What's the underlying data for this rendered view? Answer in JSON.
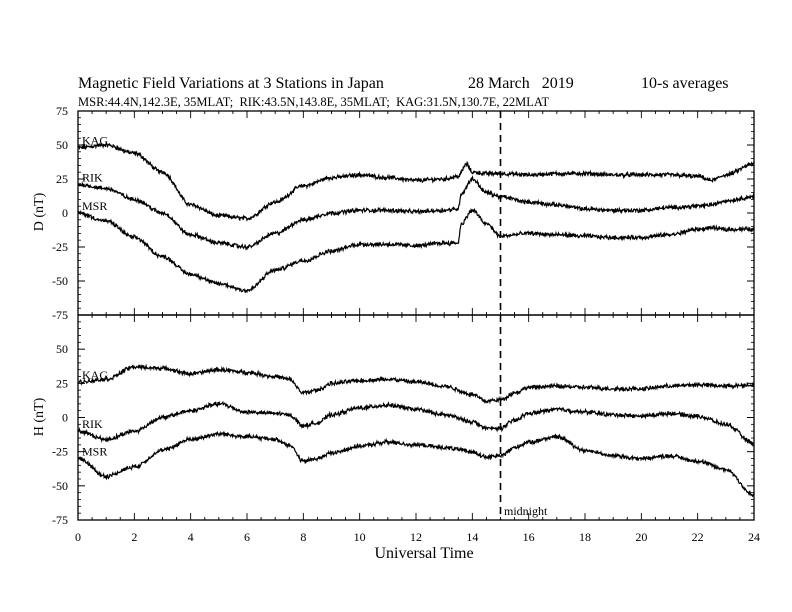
{
  "title": {
    "main": "Magnetic Field Variations at 3 Stations in Japan",
    "date": "28 March   2019",
    "avg": "10-s averages"
  },
  "subtitle": "MSR:44.4N,142.3E, 35MLAT;  RIK:43.5N,143.8E, 35MLAT;  KAG:31.5N,130.7E, 22MLAT",
  "chart_data": [
    {
      "type": "line",
      "panel": "D",
      "ylabel": "D (nT)",
      "xlabel": "Universal Time",
      "xlim": [
        0,
        24
      ],
      "ylim": [
        -75,
        75
      ],
      "x_ticks": [
        "0",
        "2",
        "4",
        "6",
        "8",
        "10",
        "12",
        "14",
        "16",
        "18",
        "20",
        "22",
        "24"
      ],
      "y_ticks": [
        "75",
        "50",
        "25",
        "0",
        "-25",
        "-50",
        "-75"
      ],
      "annotation": {
        "x": 15,
        "style": "dashed vertical line"
      },
      "series": [
        {
          "name": "KAG",
          "x": [
            0,
            1,
            2,
            3,
            4,
            5,
            6,
            7,
            8,
            9,
            10,
            11,
            12,
            13,
            13.5,
            13.8,
            14,
            14.5,
            15,
            16,
            17,
            18,
            19,
            20,
            21,
            22,
            22.5,
            23,
            24
          ],
          "y": [
            48,
            50,
            44,
            30,
            6,
            -2,
            -4,
            8,
            20,
            26,
            28,
            26,
            24,
            25,
            27,
            36,
            30,
            29,
            29,
            28,
            29,
            29,
            28,
            28,
            28,
            27,
            24,
            28,
            36
          ]
        },
        {
          "name": "RIK",
          "x": [
            0,
            1,
            2,
            3,
            4,
            5,
            6,
            7,
            8,
            9,
            10,
            11,
            12,
            13,
            13.5,
            13.6,
            14,
            14.5,
            15,
            16,
            17,
            18,
            19,
            20,
            21,
            22,
            22.5,
            23,
            24
          ],
          "y": [
            21,
            18,
            10,
            0,
            -16,
            -22,
            -25,
            -15,
            -5,
            0,
            2,
            2,
            1,
            2,
            3,
            14,
            25,
            15,
            12,
            8,
            6,
            3,
            2,
            2,
            4,
            5,
            6,
            9,
            12
          ]
        },
        {
          "name": "MSR",
          "x": [
            0,
            1,
            2,
            3,
            4,
            5,
            6,
            7,
            8,
            9,
            10,
            11,
            12,
            13,
            13.5,
            13.6,
            14,
            14.5,
            15,
            16,
            17,
            18,
            19,
            20,
            21,
            22,
            22.5,
            23,
            24
          ],
          "y": [
            0,
            -6,
            -18,
            -32,
            -45,
            -52,
            -57,
            -42,
            -35,
            -28,
            -23,
            -23,
            -24,
            -22,
            -22,
            -8,
            2,
            -8,
            -17,
            -15,
            -16,
            -17,
            -18,
            -18,
            -16,
            -12,
            -11,
            -12,
            -12
          ]
        }
      ]
    },
    {
      "type": "line",
      "panel": "H",
      "ylabel": "H (nT)",
      "xlabel": "Universal Time",
      "xlim": [
        0,
        24
      ],
      "ylim": [
        -75,
        75
      ],
      "x_ticks": [
        "0",
        "2",
        "4",
        "6",
        "8",
        "10",
        "12",
        "14",
        "16",
        "18",
        "20",
        "22",
        "24"
      ],
      "y_ticks": [
        "75",
        "50",
        "25",
        "0",
        "-25",
        "-50",
        "-75"
      ],
      "annotation": {
        "x": 15,
        "label": "midnight",
        "style": "dashed vertical line"
      },
      "series": [
        {
          "name": "KAG",
          "x": [
            0,
            1,
            2,
            3,
            4,
            5,
            6,
            7,
            7.5,
            8,
            8.5,
            9,
            10,
            11,
            12,
            13,
            14,
            14.5,
            15,
            15.5,
            16,
            17,
            18,
            19,
            20,
            21,
            22,
            23,
            24
          ],
          "y": [
            26,
            28,
            37,
            36,
            32,
            35,
            33,
            30,
            28,
            18,
            20,
            25,
            27,
            28,
            26,
            23,
            17,
            12,
            13,
            18,
            22,
            23,
            22,
            21,
            21,
            23,
            24,
            23,
            24
          ]
        },
        {
          "name": "RIK",
          "x": [
            0,
            1,
            2,
            3,
            4,
            5,
            6,
            7,
            7.5,
            8,
            8.5,
            9,
            10,
            11,
            12,
            13,
            14,
            14.5,
            15,
            15.5,
            16,
            17,
            18,
            19,
            20,
            21,
            22,
            23,
            24
          ],
          "y": [
            -10,
            -16,
            -10,
            0,
            5,
            10,
            4,
            3,
            2,
            -6,
            -4,
            2,
            7,
            9,
            6,
            2,
            -3,
            -8,
            -8,
            -2,
            3,
            6,
            4,
            2,
            1,
            3,
            1,
            -5,
            -19
          ]
        },
        {
          "name": "MSR",
          "x": [
            0,
            1,
            2,
            3,
            4,
            5,
            6,
            7,
            7.5,
            8,
            8.5,
            9,
            10,
            11,
            12,
            13,
            14,
            14.5,
            15,
            15.5,
            16,
            17,
            18,
            19,
            20,
            21,
            22,
            23,
            24
          ],
          "y": [
            -30,
            -43,
            -36,
            -24,
            -16,
            -12,
            -14,
            -16,
            -20,
            -32,
            -30,
            -26,
            -21,
            -18,
            -20,
            -22,
            -25,
            -29,
            -28,
            -22,
            -18,
            -14,
            -24,
            -28,
            -30,
            -28,
            -32,
            -38,
            -57
          ]
        }
      ]
    }
  ]
}
